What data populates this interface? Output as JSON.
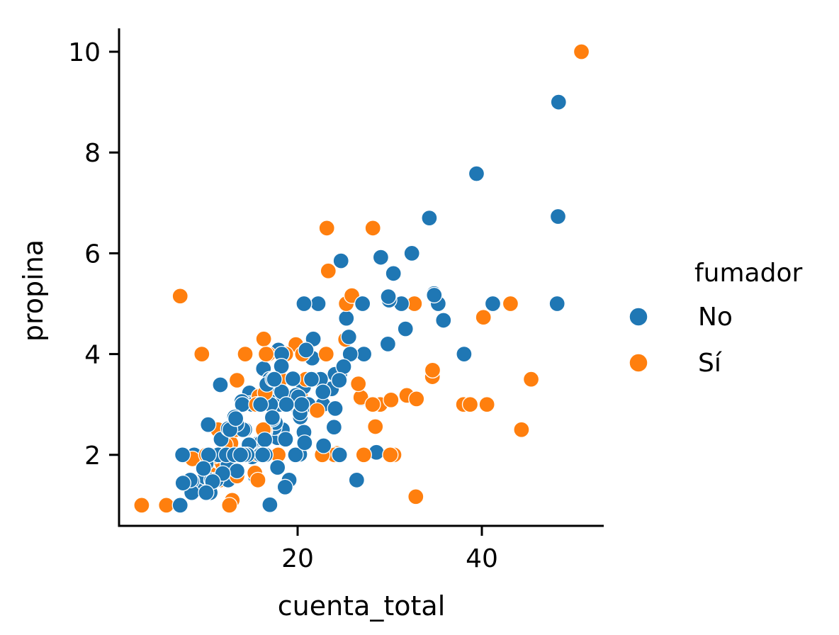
{
  "chart_data": {
    "type": "scatter",
    "xlabel": "cuenta_total",
    "ylabel": "propina",
    "xlim": [
      0.5,
      53
    ],
    "ylim": [
      0.59,
      10.45
    ],
    "xticks": [
      20,
      40
    ],
    "yticks": [
      2,
      4,
      6,
      8,
      10
    ],
    "grid": false,
    "legend": {
      "title": "fumador",
      "placement": "right"
    },
    "series": [
      {
        "name": "No",
        "color": "#1f77b4",
        "points": [
          [
            16.99,
            1.01
          ],
          [
            10.34,
            1.66
          ],
          [
            21.01,
            3.5
          ],
          [
            23.68,
            3.31
          ],
          [
            24.59,
            3.61
          ],
          [
            25.29,
            4.71
          ],
          [
            8.77,
            2.0
          ],
          [
            26.88,
            3.12
          ],
          [
            15.04,
            1.96
          ],
          [
            14.78,
            3.23
          ],
          [
            10.27,
            1.71
          ],
          [
            35.26,
            5.0
          ],
          [
            15.42,
            1.57
          ],
          [
            18.43,
            3.0
          ],
          [
            14.83,
            3.02
          ],
          [
            21.58,
            3.92
          ],
          [
            10.33,
            1.67
          ],
          [
            16.29,
            3.71
          ],
          [
            16.97,
            3.5
          ],
          [
            20.65,
            3.35
          ],
          [
            17.92,
            4.08
          ],
          [
            20.29,
            2.75
          ],
          [
            15.77,
            2.23
          ],
          [
            39.42,
            7.58
          ],
          [
            19.82,
            3.18
          ],
          [
            17.81,
            2.34
          ],
          [
            13.37,
            2.0
          ],
          [
            12.69,
            2.0
          ],
          [
            21.7,
            4.3
          ],
          [
            19.65,
            3.0
          ],
          [
            9.55,
            1.45
          ],
          [
            18.35,
            2.5
          ],
          [
            15.06,
            3.0
          ],
          [
            20.69,
            2.45
          ],
          [
            17.78,
            3.27
          ],
          [
            24.06,
            3.6
          ],
          [
            16.31,
            2.0
          ],
          [
            16.93,
            3.07
          ],
          [
            18.69,
            2.31
          ],
          [
            31.27,
            5.0
          ],
          [
            16.04,
            2.24
          ],
          [
            17.46,
            2.54
          ],
          [
            13.94,
            3.06
          ],
          [
            9.68,
            1.32
          ],
          [
            30.4,
            5.6
          ],
          [
            18.29,
            3.0
          ],
          [
            22.23,
            5.0
          ],
          [
            32.4,
            6.0
          ],
          [
            28.55,
            2.05
          ],
          [
            18.04,
            3.0
          ],
          [
            12.54,
            2.5
          ],
          [
            10.29,
            2.6
          ],
          [
            34.81,
            5.2
          ],
          [
            9.94,
            1.56
          ],
          [
            25.56,
            4.34
          ],
          [
            19.49,
            3.51
          ],
          [
            26.41,
            1.5
          ],
          [
            48.27,
            6.73
          ],
          [
            17.59,
            2.64
          ],
          [
            20.08,
            3.15
          ],
          [
            16.45,
            2.47
          ],
          [
            20.23,
            2.01
          ],
          [
            12.02,
            1.97
          ],
          [
            17.07,
            3.0
          ],
          [
            14.73,
            2.2
          ],
          [
            10.51,
            1.25
          ],
          [
            27.2,
            4.0
          ],
          [
            22.76,
            3.0
          ],
          [
            17.29,
            2.71
          ],
          [
            16.66,
            3.4
          ],
          [
            10.07,
            1.83
          ],
          [
            15.98,
            2.03
          ],
          [
            34.83,
            5.17
          ],
          [
            13.03,
            2.0
          ],
          [
            18.28,
            4.0
          ],
          [
            24.71,
            5.85
          ],
          [
            21.16,
            3.0
          ],
          [
            22.49,
            3.5
          ],
          [
            22.75,
            3.25
          ],
          [
            12.46,
            1.5
          ],
          [
            20.92,
            4.08
          ],
          [
            18.24,
            3.76
          ],
          [
            14.0,
            3.0
          ],
          [
            7.25,
            1.0
          ],
          [
            38.07,
            4.0
          ],
          [
            23.95,
            2.55
          ],
          [
            25.71,
            4.0
          ],
          [
            17.31,
            3.5
          ],
          [
            29.93,
            5.07
          ],
          [
            10.65,
            1.5
          ],
          [
            12.43,
            1.8
          ],
          [
            24.08,
            2.92
          ],
          [
            11.69,
            2.31
          ],
          [
            13.42,
            1.68
          ],
          [
            14.26,
            2.5
          ],
          [
            15.95,
            2.0
          ],
          [
            12.48,
            2.52
          ],
          [
            29.8,
            4.2
          ],
          [
            8.52,
            1.48
          ],
          [
            14.52,
            2.0
          ],
          [
            11.38,
            2.0
          ],
          [
            22.82,
            2.18
          ],
          [
            19.08,
            1.5
          ],
          [
            20.27,
            2.83
          ],
          [
            11.17,
            1.5
          ],
          [
            12.26,
            2.0
          ],
          [
            18.26,
            3.25
          ],
          [
            8.51,
            1.25
          ],
          [
            10.33,
            2.0
          ],
          [
            14.15,
            2.0
          ],
          [
            13.16,
            2.75
          ],
          [
            17.47,
            3.5
          ],
          [
            34.3,
            6.7
          ],
          [
            41.19,
            5.0
          ],
          [
            27.05,
            5.0
          ],
          [
            16.43,
            2.3
          ],
          [
            8.35,
            1.5
          ],
          [
            18.64,
            1.36
          ],
          [
            11.87,
            1.63
          ],
          [
            9.78,
            1.73
          ],
          [
            7.51,
            2.0
          ],
          [
            14.07,
            2.5
          ],
          [
            13.13,
            2.0
          ],
          [
            17.26,
            2.74
          ],
          [
            24.55,
            2.0
          ],
          [
            19.77,
            2.0
          ],
          [
            29.85,
            5.14
          ],
          [
            48.17,
            5.0
          ],
          [
            25.0,
            3.75
          ],
          [
            13.39,
            2.61
          ],
          [
            16.49,
            2.0
          ],
          [
            21.5,
            3.5
          ],
          [
            12.66,
            2.5
          ],
          [
            16.21,
            2.0
          ],
          [
            13.81,
            2.0
          ],
          [
            24.52,
            3.48
          ],
          [
            20.76,
            2.24
          ],
          [
            31.71,
            4.5
          ],
          [
            20.69,
            5.0
          ],
          [
            7.56,
            1.44
          ],
          [
            48.33,
            9.0
          ],
          [
            15.98,
            3.0
          ],
          [
            20.45,
            3.0
          ],
          [
            13.28,
            2.72
          ],
          [
            11.61,
            3.39
          ],
          [
            10.77,
            1.47
          ],
          [
            10.07,
            1.25
          ],
          [
            35.83,
            4.67
          ],
          [
            29.03,
            5.92
          ],
          [
            17.82,
            1.75
          ],
          [
            18.78,
            3.0
          ]
        ]
      },
      {
        "name": "Sí",
        "color": "#ff7f0e",
        "points": [
          [
            38.01,
            3.0
          ],
          [
            11.24,
            1.76
          ],
          [
            20.29,
            3.21
          ],
          [
            13.81,
            2.0
          ],
          [
            11.02,
            1.98
          ],
          [
            18.29,
            3.76
          ],
          [
            3.07,
            1.0
          ],
          [
            15.01,
            2.09
          ],
          [
            26.86,
            3.14
          ],
          [
            25.28,
            5.0
          ],
          [
            17.92,
            3.08
          ],
          [
            19.44,
            3.0
          ],
          [
            32.68,
            5.0
          ],
          [
            28.97,
            3.0
          ],
          [
            5.75,
            1.0
          ],
          [
            16.32,
            4.3
          ],
          [
            40.17,
            4.73
          ],
          [
            27.28,
            4.0
          ],
          [
            12.03,
            1.5
          ],
          [
            21.01,
            3.0
          ],
          [
            11.35,
            2.5
          ],
          [
            15.38,
            3.0
          ],
          [
            44.3,
            2.5
          ],
          [
            22.42,
            3.48
          ],
          [
            15.36,
            1.64
          ],
          [
            20.49,
            4.06
          ],
          [
            25.21,
            4.29
          ],
          [
            14.31,
            4.0
          ],
          [
            16.0,
            2.0
          ],
          [
            17.51,
            3.0
          ],
          [
            10.59,
            1.61
          ],
          [
            10.63,
            2.0
          ],
          [
            50.81,
            10.0
          ],
          [
            15.81,
            3.16
          ],
          [
            7.25,
            5.15
          ],
          [
            31.85,
            3.18
          ],
          [
            16.82,
            4.0
          ],
          [
            32.9,
            3.11
          ],
          [
            17.89,
            2.0
          ],
          [
            14.48,
            2.0
          ],
          [
            9.6,
            4.0
          ],
          [
            34.63,
            3.55
          ],
          [
            34.65,
            3.68
          ],
          [
            23.33,
            5.65
          ],
          [
            45.35,
            3.5
          ],
          [
            23.17,
            6.5
          ],
          [
            40.55,
            3.0
          ],
          [
            20.9,
            3.5
          ],
          [
            30.46,
            2.0
          ],
          [
            18.15,
            3.5
          ],
          [
            23.1,
            4.0
          ],
          [
            15.69,
            1.5
          ],
          [
            19.81,
            4.19
          ],
          [
            28.44,
            2.56
          ],
          [
            15.48,
            2.02
          ],
          [
            16.58,
            4.0
          ],
          [
            10.34,
            2.0
          ],
          [
            43.11,
            5.0
          ],
          [
            13.0,
            2.0
          ],
          [
            13.51,
            2.0
          ],
          [
            18.71,
            4.0
          ],
          [
            12.74,
            2.01
          ],
          [
            16.4,
            2.5
          ],
          [
            20.53,
            4.0
          ],
          [
            16.47,
            3.23
          ],
          [
            26.59,
            3.41
          ],
          [
            38.73,
            3.0
          ],
          [
            24.27,
            2.03
          ],
          [
            12.76,
            2.23
          ],
          [
            30.06,
            2.0
          ],
          [
            25.89,
            5.16
          ],
          [
            13.27,
            2.5
          ],
          [
            28.17,
            6.5
          ],
          [
            12.9,
            1.1
          ],
          [
            28.15,
            3.0
          ],
          [
            11.59,
            1.5
          ],
          [
            7.74,
            1.44
          ],
          [
            30.14,
            3.09
          ],
          [
            12.16,
            2.2
          ],
          [
            13.42,
            3.48
          ],
          [
            8.58,
            1.92
          ],
          [
            13.42,
            1.58
          ],
          [
            16.27,
            2.5
          ],
          [
            10.09,
            2.0
          ],
          [
            22.12,
            2.88
          ],
          [
            24.01,
            2.0
          ],
          [
            15.69,
            3.0
          ],
          [
            15.53,
            3.0
          ],
          [
            12.6,
            1.0
          ],
          [
            32.83,
            1.17
          ],
          [
            27.18,
            2.0
          ],
          [
            22.67,
            2.0
          ]
        ]
      }
    ]
  }
}
